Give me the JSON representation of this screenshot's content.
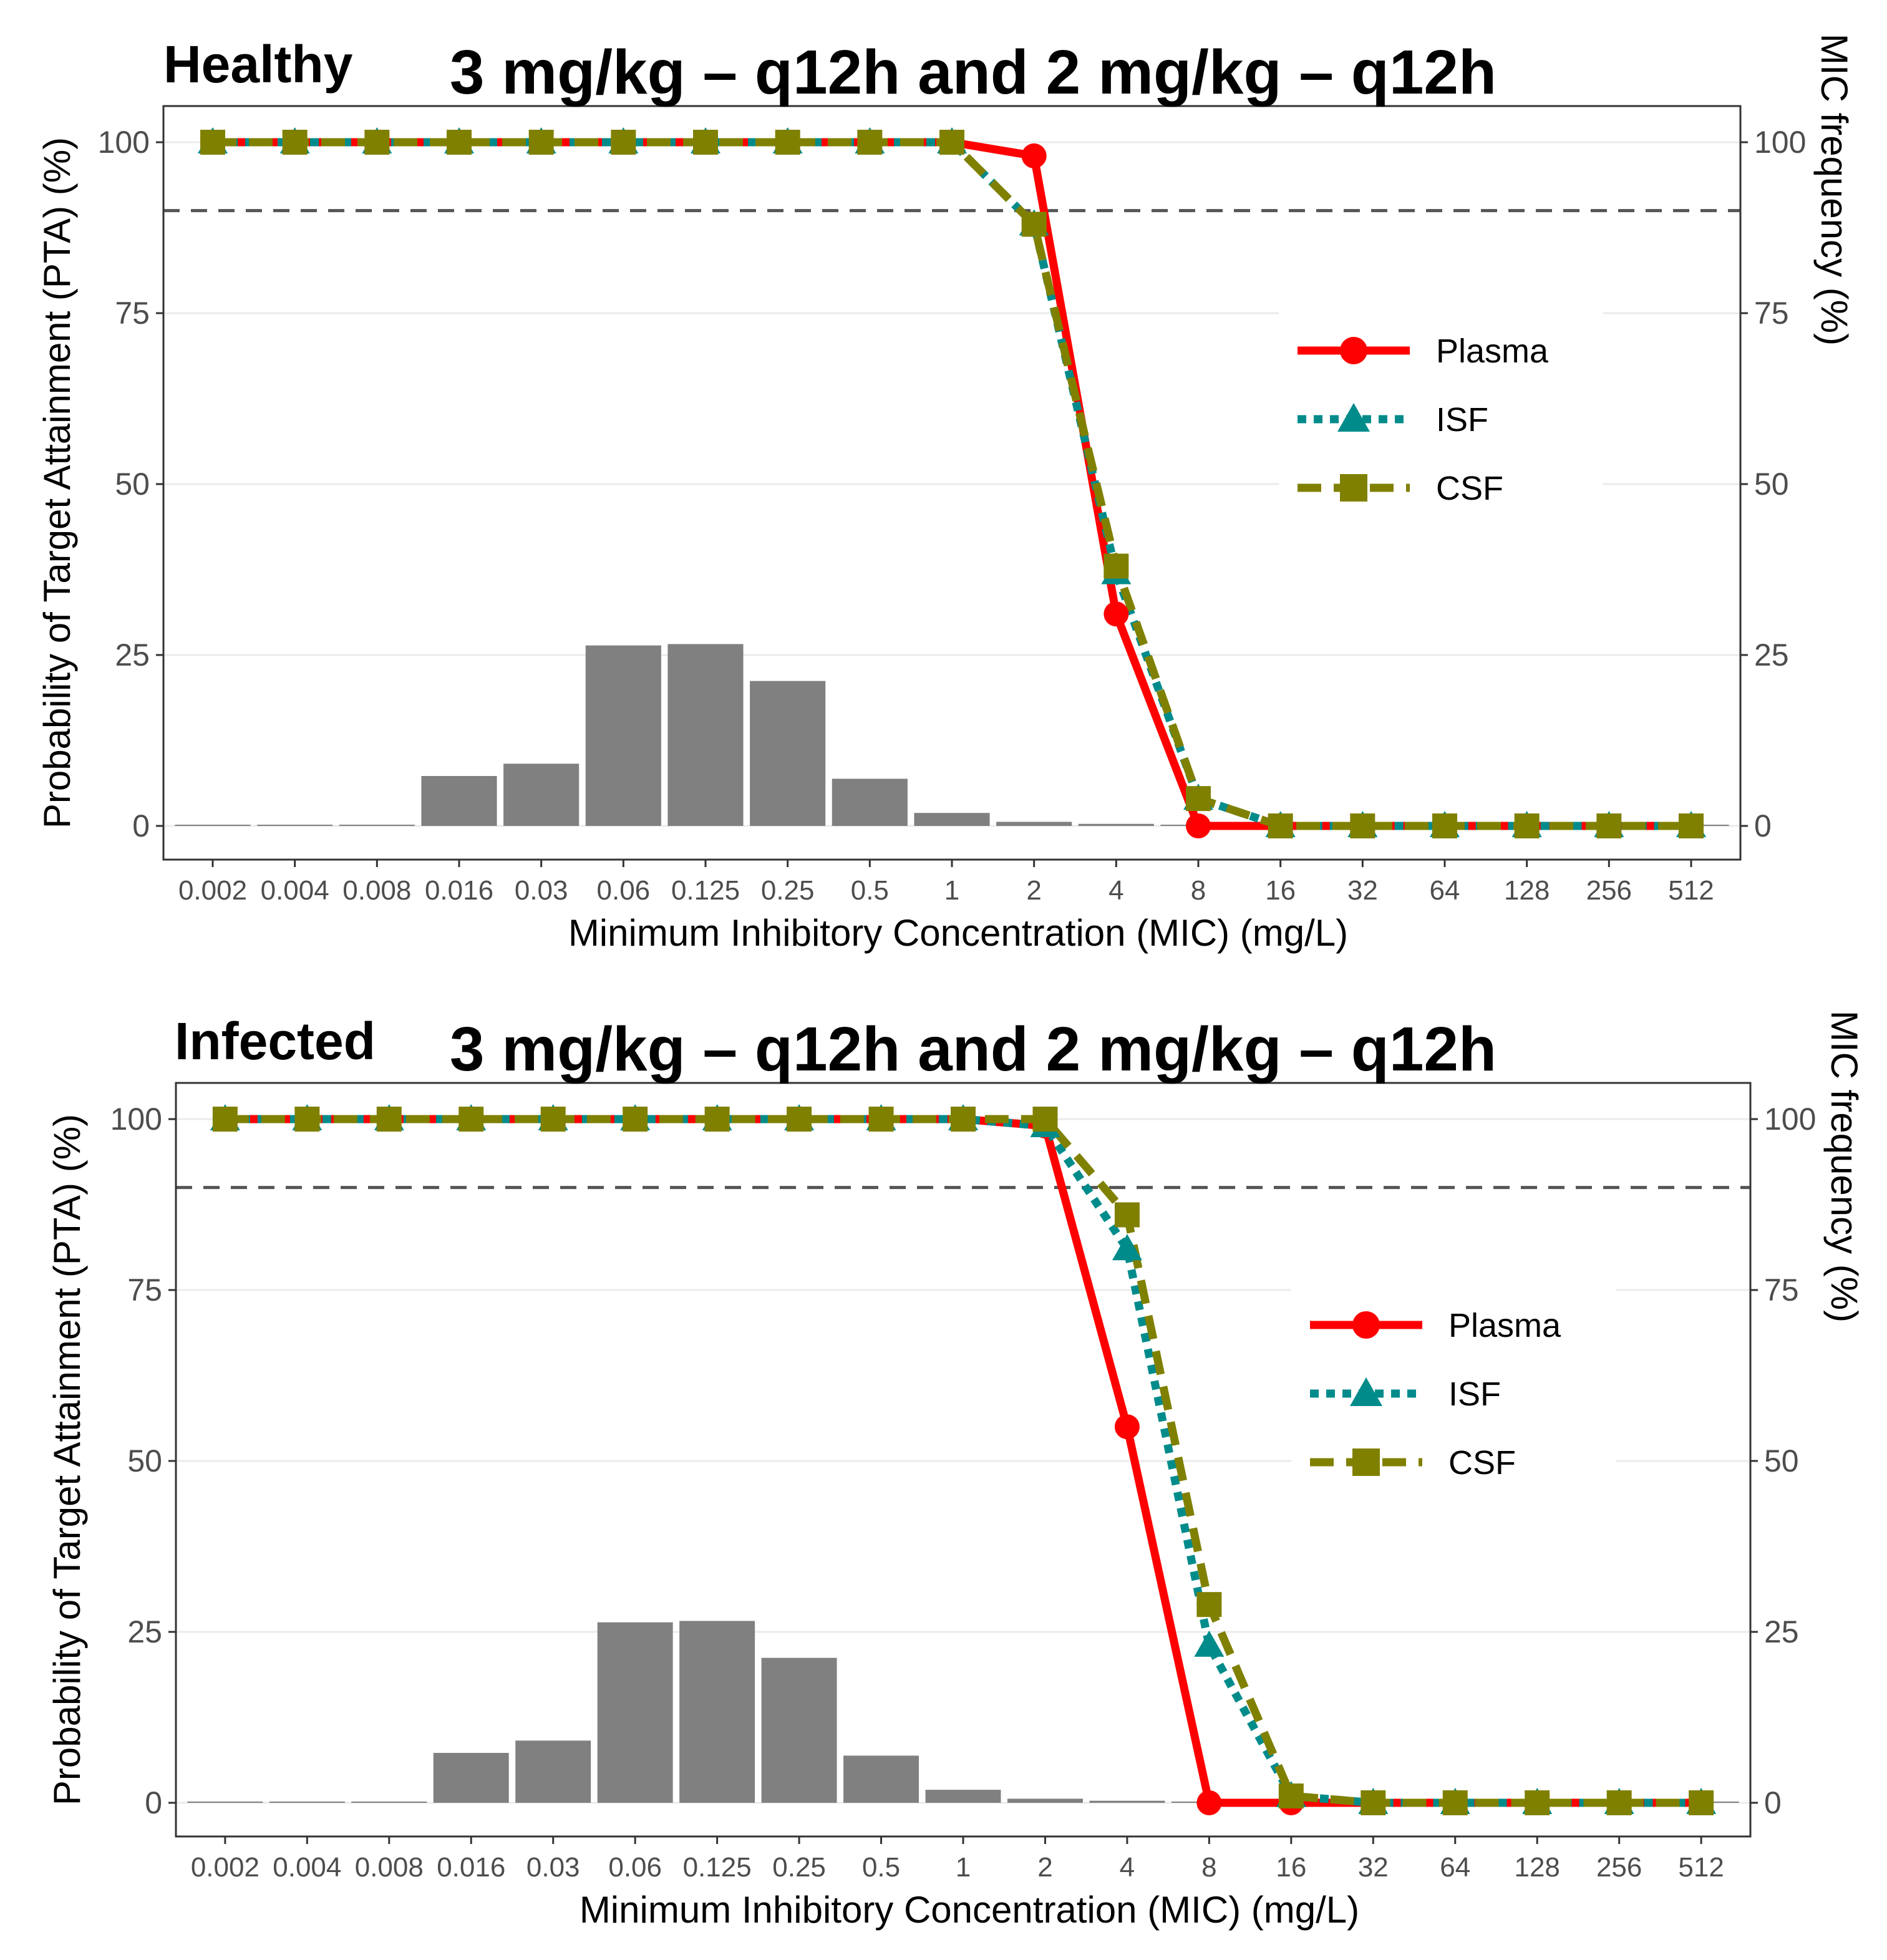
{
  "chart_data": [
    {
      "type": "bar+line",
      "panel_label": "Healthy",
      "title": "3 mg/kg – q12h and 2 mg/kg – q12h",
      "xlabel": "Minimum Inhibitory Concentration (MIC) (mg/L)",
      "ylabel": "Probability of Target Attainment (PTA) (%)",
      "ylabel_right": "MIC frequency (%)",
      "ylim": [
        0,
        100
      ],
      "yticks": [
        "0",
        "25",
        "50",
        "75",
        "100"
      ],
      "categories": [
        "0.002",
        "0.004",
        "0.008",
        "0.016",
        "0.03",
        "0.06",
        "0.125",
        "0.25",
        "0.5",
        "1",
        "2",
        "4",
        "8",
        "16",
        "32",
        "64",
        "128",
        "256",
        "512"
      ],
      "target_line": 90,
      "mic_frequency": [
        0.1,
        0.1,
        0.1,
        7.3,
        9.1,
        26.4,
        26.6,
        21.2,
        6.9,
        1.9,
        0.6,
        0.3,
        0,
        0,
        0,
        0,
        0,
        0,
        0
      ],
      "series": [
        {
          "name": "Plasma",
          "color": "#ff0000",
          "marker": "circle",
          "dash": "solid",
          "values": [
            100,
            100,
            100,
            100,
            100,
            100,
            100,
            100,
            100,
            100,
            98,
            31,
            0,
            0,
            0,
            0,
            0,
            0,
            0
          ]
        },
        {
          "name": "ISF",
          "color": "#008b8b",
          "marker": "triangle",
          "dash": "dotted",
          "values": [
            100,
            100,
            100,
            100,
            100,
            100,
            100,
            100,
            100,
            100,
            88,
            37,
            4,
            0,
            0,
            0,
            0,
            0,
            0
          ]
        },
        {
          "name": "CSF",
          "color": "#808000",
          "marker": "square",
          "dash": "dashed",
          "values": [
            100,
            100,
            100,
            100,
            100,
            100,
            100,
            100,
            100,
            100,
            88,
            38,
            4,
            0,
            0,
            0,
            0,
            0,
            0
          ]
        }
      ],
      "legend_position": "right-middle"
    },
    {
      "type": "bar+line",
      "panel_label": "Infected",
      "title": "3 mg/kg – q12h and 2 mg/kg – q12h",
      "xlabel": "Minimum Inhibitory Concentration (MIC) (mg/L)",
      "ylabel": "Probability of Target Attainment (PTA) (%)",
      "ylabel_right": "MIC frequency (%)",
      "ylim": [
        0,
        100
      ],
      "yticks": [
        "0",
        "25",
        "50",
        "75",
        "100"
      ],
      "categories": [
        "0.002",
        "0.004",
        "0.008",
        "0.016",
        "0.03",
        "0.06",
        "0.125",
        "0.25",
        "0.5",
        "1",
        "2",
        "4",
        "8",
        "16",
        "32",
        "64",
        "128",
        "256",
        "512"
      ],
      "target_line": 90,
      "mic_frequency": [
        0.1,
        0.1,
        0.1,
        7.3,
        9.1,
        26.4,
        26.6,
        21.2,
        6.9,
        1.9,
        0.6,
        0.3,
        0,
        0,
        0,
        0,
        0,
        0,
        0
      ],
      "series": [
        {
          "name": "Plasma",
          "color": "#ff0000",
          "marker": "circle",
          "dash": "solid",
          "values": [
            100,
            100,
            100,
            100,
            100,
            100,
            100,
            100,
            100,
            100,
            99,
            55,
            0,
            0,
            0,
            0,
            0,
            0,
            0
          ]
        },
        {
          "name": "ISF",
          "color": "#008b8b",
          "marker": "triangle",
          "dash": "dotted",
          "values": [
            100,
            100,
            100,
            100,
            100,
            100,
            100,
            100,
            100,
            100,
            99,
            81,
            23,
            1,
            0,
            0,
            0,
            0,
            0
          ]
        },
        {
          "name": "CSF",
          "color": "#808000",
          "marker": "square",
          "dash": "dashed",
          "values": [
            100,
            100,
            100,
            100,
            100,
            100,
            100,
            100,
            100,
            100,
            100,
            86,
            29,
            1,
            0,
            0,
            0,
            0,
            0
          ]
        }
      ],
      "legend_position": "right-middle"
    }
  ]
}
